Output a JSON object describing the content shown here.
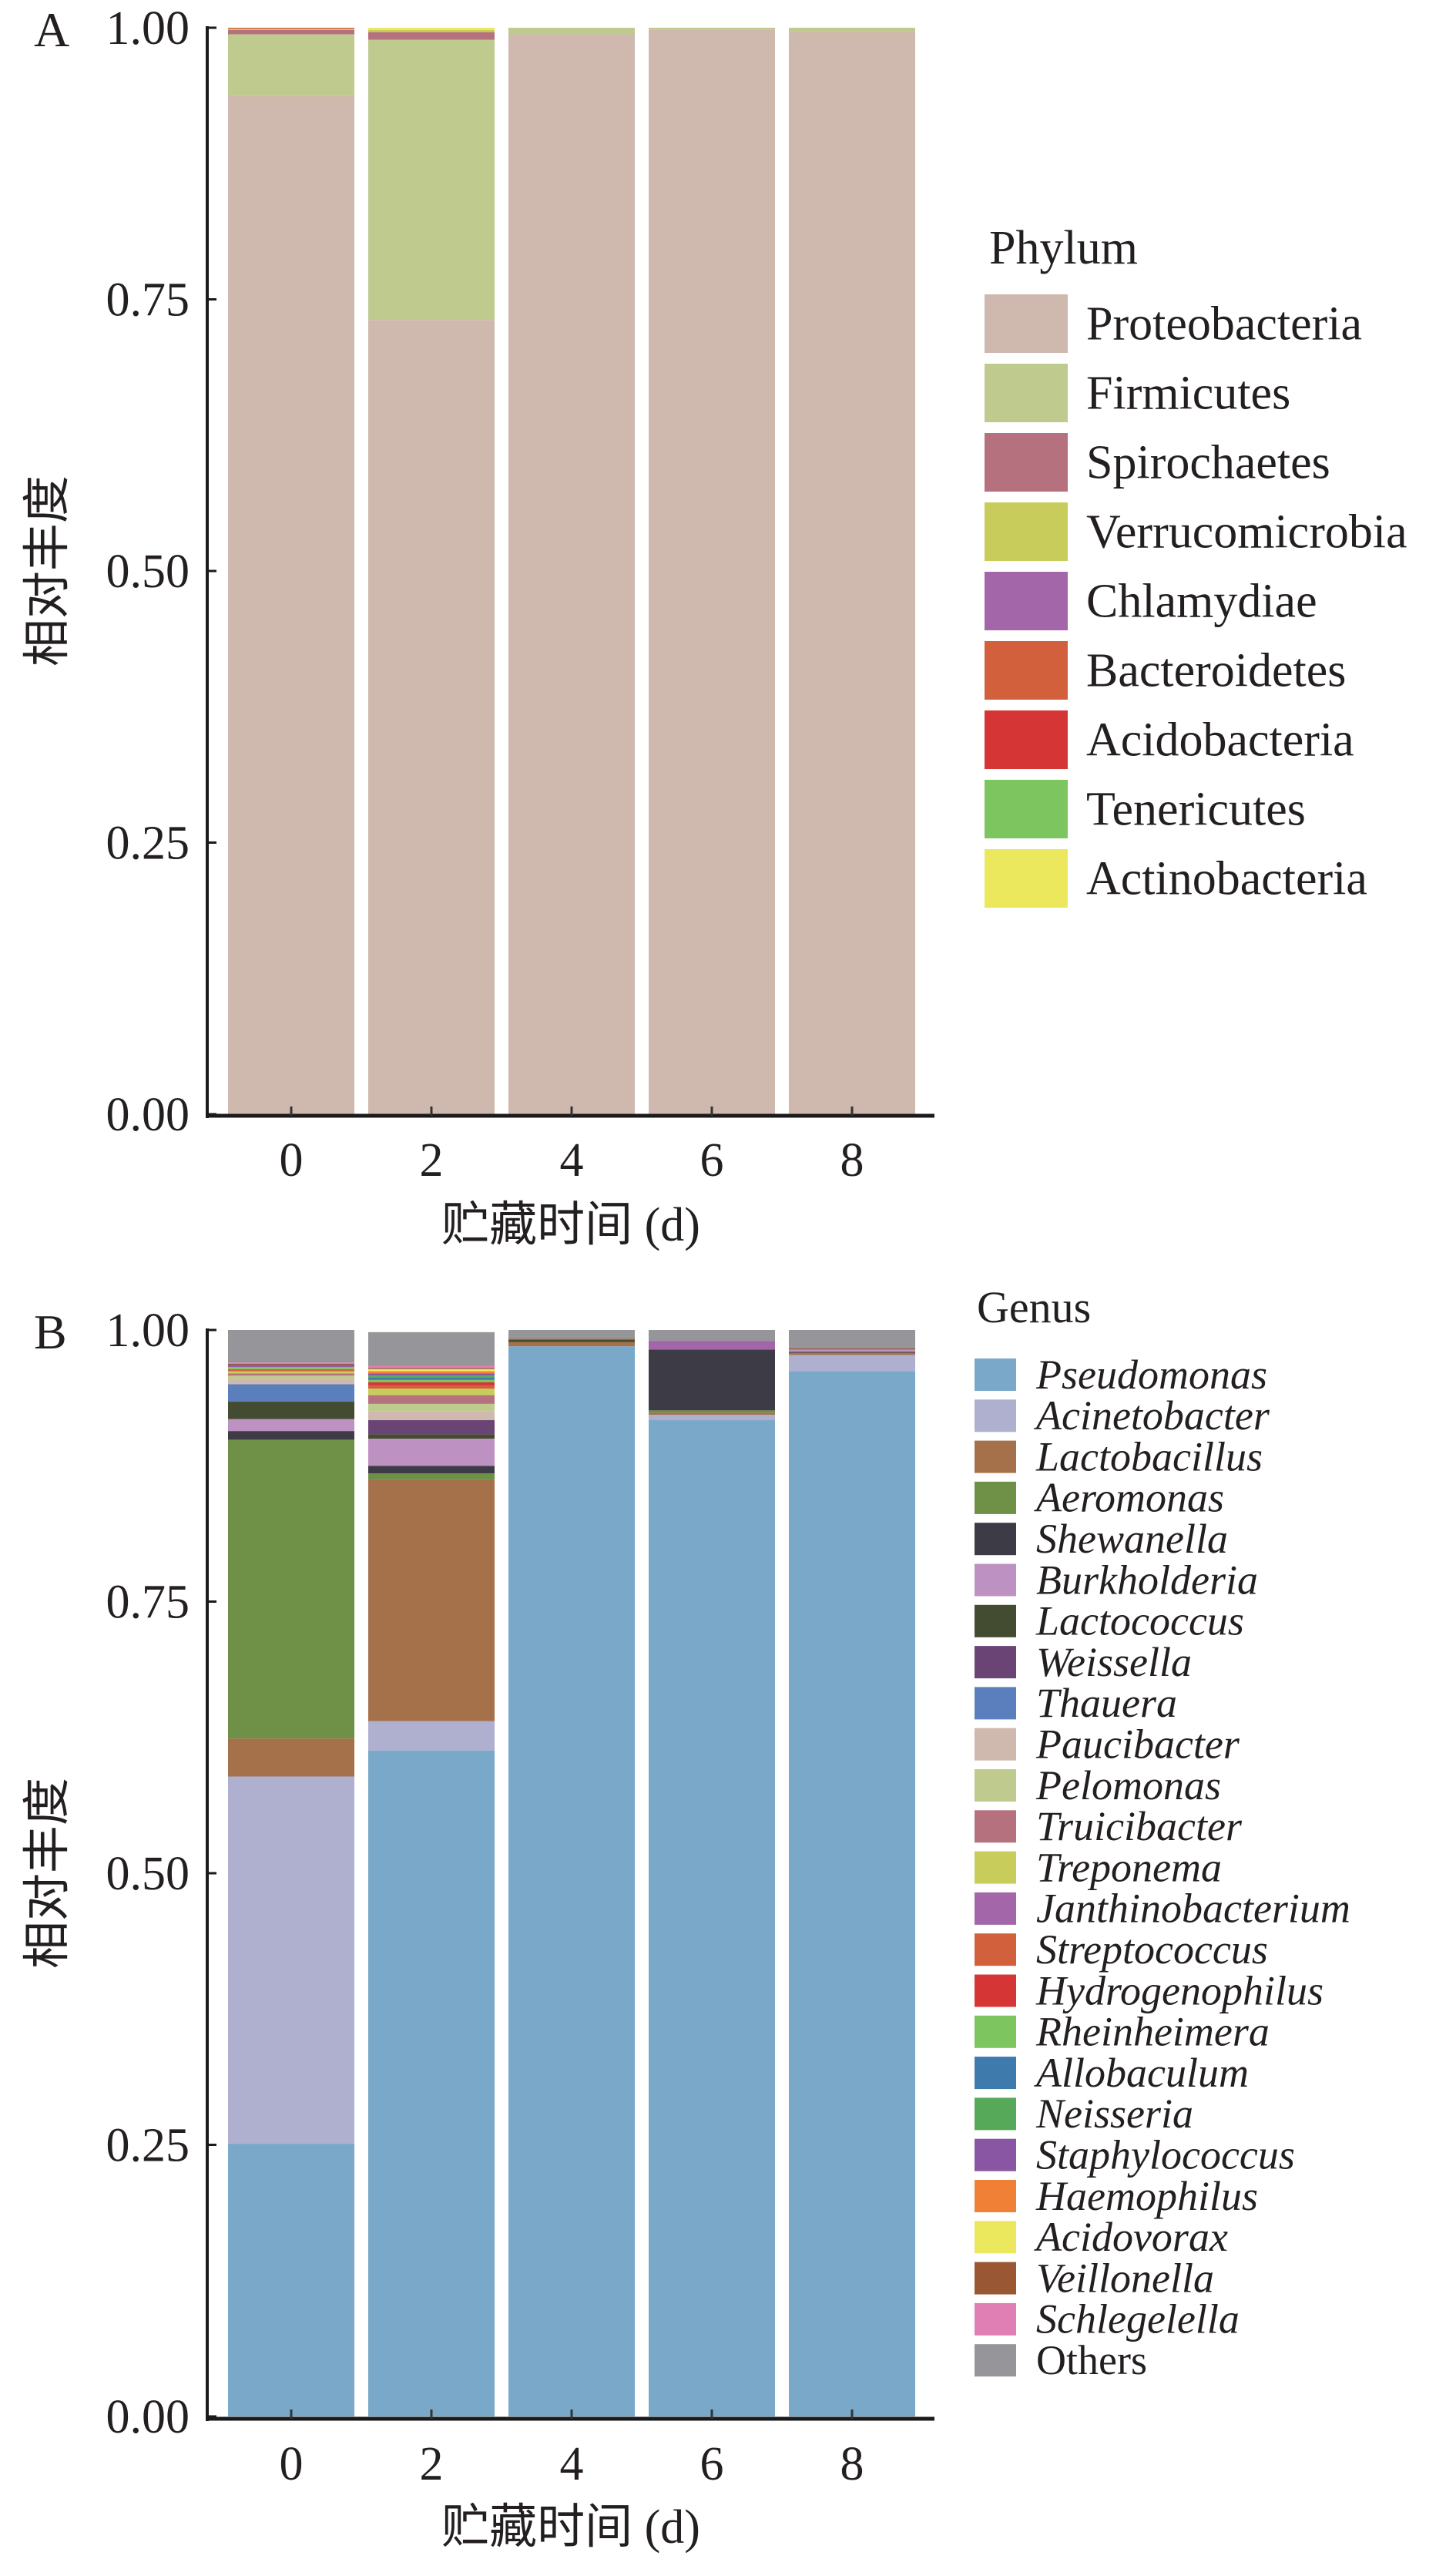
{
  "chart_data": [
    {
      "panel_label": "A",
      "type": "bar",
      "stacked": true,
      "title": "",
      "xlabel": "贮藏时间 (d)",
      "ylabel": "相对丰度",
      "categories": [
        "0",
        "2",
        "4",
        "6",
        "8"
      ],
      "ylim": [
        0,
        1
      ],
      "yticks": [
        "0.00",
        "0.25",
        "0.50",
        "0.75",
        "1.00"
      ],
      "yticks_values": [
        0,
        0.25,
        0.5,
        0.75,
        1.0
      ],
      "grid": false,
      "legend_title": "Phylum",
      "legend_position": "right",
      "legend_italic": false,
      "series": [
        {
          "name": "Proteobacteria",
          "color": "#cfb8ad",
          "values": [
            0.937,
            0.731,
            0.994,
            0.998,
            0.996
          ]
        },
        {
          "name": "Firmicutes",
          "color": "#bfca8f",
          "values": [
            0.057,
            0.258,
            0.006,
            0.002,
            0.004
          ]
        },
        {
          "name": "Spirochaetes",
          "color": "#b5727e",
          "values": [
            0.004,
            0.007,
            0.0,
            0.0,
            0.0
          ]
        },
        {
          "name": "Verrucomicrobia",
          "color": "#c8cc5a",
          "values": [
            0.001,
            0.002,
            0.0,
            0.0,
            0.0
          ]
        },
        {
          "name": "Chlamydiae",
          "color": "#a366a8",
          "values": [
            0.0,
            0.0,
            0.0,
            0.0,
            0.0
          ]
        },
        {
          "name": "Bacteroidetes",
          "color": "#d2603c",
          "values": [
            0.001,
            0.0,
            0.0,
            0.0,
            0.0
          ]
        },
        {
          "name": "Acidobacteria",
          "color": "#d63535",
          "values": [
            0.0,
            0.0,
            0.0,
            0.0,
            0.0
          ]
        },
        {
          "name": "Tenericutes",
          "color": "#7cc55f",
          "values": [
            0.0,
            0.0,
            0.0,
            0.0,
            0.0
          ]
        },
        {
          "name": "Actinobacteria",
          "color": "#ece85d",
          "values": [
            0.0,
            0.002,
            0.0,
            0.0,
            0.0
          ]
        }
      ]
    },
    {
      "panel_label": "B",
      "type": "bar",
      "stacked": true,
      "title": "",
      "xlabel": "贮藏时间 (d)",
      "ylabel": "相对丰度",
      "categories": [
        "0",
        "2",
        "4",
        "6",
        "8"
      ],
      "ylim": [
        0,
        1
      ],
      "yticks": [
        "0.00",
        "0.25",
        "0.50",
        "0.75",
        "1.00"
      ],
      "yticks_values": [
        0,
        0.25,
        0.5,
        0.75,
        1.0
      ],
      "grid": false,
      "legend_title": "Genus",
      "legend_position": "right",
      "legend_italic": true,
      "series": [
        {
          "name": "Pseudomonas",
          "color": "#79a8c8",
          "values": [
            0.251,
            0.613,
            0.985,
            0.917,
            0.962
          ]
        },
        {
          "name": "Acinetobacter",
          "color": "#afafd0",
          "values": [
            0.338,
            0.027,
            0.0,
            0.005,
            0.015
          ]
        },
        {
          "name": "Lactobacillus",
          "color": "#a5714b",
          "values": [
            0.035,
            0.222,
            0.004,
            0.002,
            0.002
          ]
        },
        {
          "name": "Aeromonas",
          "color": "#6e9047",
          "values": [
            0.275,
            0.006,
            0.0,
            0.002,
            0.0
          ]
        },
        {
          "name": "Shewanella",
          "color": "#3d3b45",
          "values": [
            0.008,
            0.007,
            0.0,
            0.056,
            0.001
          ]
        },
        {
          "name": "Burkholderia",
          "color": "#bd92c2",
          "values": [
            0.011,
            0.025,
            0.0,
            0.0,
            0.002
          ]
        },
        {
          "name": "Lactococcus",
          "color": "#434b30",
          "values": [
            0.016,
            0.004,
            0.002,
            0.0,
            0.0
          ]
        },
        {
          "name": "Weissella",
          "color": "#6b4476",
          "values": [
            0.0,
            0.013,
            0.0,
            0.0,
            0.0
          ]
        },
        {
          "name": "Thauera",
          "color": "#5b7fbd",
          "values": [
            0.016,
            0.0,
            0.0,
            0.0,
            0.0
          ]
        },
        {
          "name": "Paucibacter",
          "color": "#cfb8ad",
          "values": [
            0.005,
            0.008,
            0.0,
            0.0,
            0.0
          ]
        },
        {
          "name": "Pelomonas",
          "color": "#bfca8f",
          "values": [
            0.003,
            0.007,
            0.0,
            0.0,
            0.0
          ]
        },
        {
          "name": "Truicibacter",
          "color": "#b5727e",
          "values": [
            0.002,
            0.008,
            0.0,
            0.0,
            0.0
          ]
        },
        {
          "name": "Treponema",
          "color": "#c8cc5a",
          "values": [
            0.002,
            0.006,
            0.0,
            0.0,
            0.0
          ]
        },
        {
          "name": "Janthinobacterium",
          "color": "#a366a8",
          "values": [
            0.0,
            0.0,
            0.0,
            0.008,
            0.0
          ]
        },
        {
          "name": "Streptococcus",
          "color": "#d2603c",
          "values": [
            0.002,
            0.003,
            0.0,
            0.0,
            0.0
          ]
        },
        {
          "name": "Hydrogenophilus",
          "color": "#d63535",
          "values": [
            0.0,
            0.003,
            0.0,
            0.0,
            0.0
          ]
        },
        {
          "name": "Rheinheimera",
          "color": "#7cc55f",
          "values": [
            0.002,
            0.002,
            0.0,
            0.0,
            0.0
          ]
        },
        {
          "name": "Allobaculum",
          "color": "#3f7aad",
          "values": [
            0.0,
            0.002,
            0.0,
            0.0,
            0.0
          ]
        },
        {
          "name": "Neisseria",
          "color": "#57a95a",
          "values": [
            0.0,
            0.002,
            0.0,
            0.0,
            0.0
          ]
        },
        {
          "name": "Staphylococcus",
          "color": "#8956a3",
          "values": [
            0.002,
            0.002,
            0.0,
            0.0,
            0.0
          ]
        },
        {
          "name": "Haemophilus",
          "color": "#f08036",
          "values": [
            0.0,
            0.002,
            0.0,
            0.0,
            0.0
          ]
        },
        {
          "name": "Acidovorax",
          "color": "#ece85d",
          "values": [
            0.0,
            0.002,
            0.0,
            0.0,
            0.0
          ]
        },
        {
          "name": "Veillonella",
          "color": "#9a5734",
          "values": [
            0.001,
            0.001,
            0.001,
            0.0,
            0.001
          ]
        },
        {
          "name": "Schlegelella",
          "color": "#e07fb3",
          "values": [
            0.001,
            0.002,
            0.0,
            0.0,
            0.0
          ]
        },
        {
          "name": "Others",
          "color": "#96969a",
          "values": [
            0.03,
            0.031,
            0.008,
            0.01,
            0.017
          ]
        }
      ]
    }
  ]
}
